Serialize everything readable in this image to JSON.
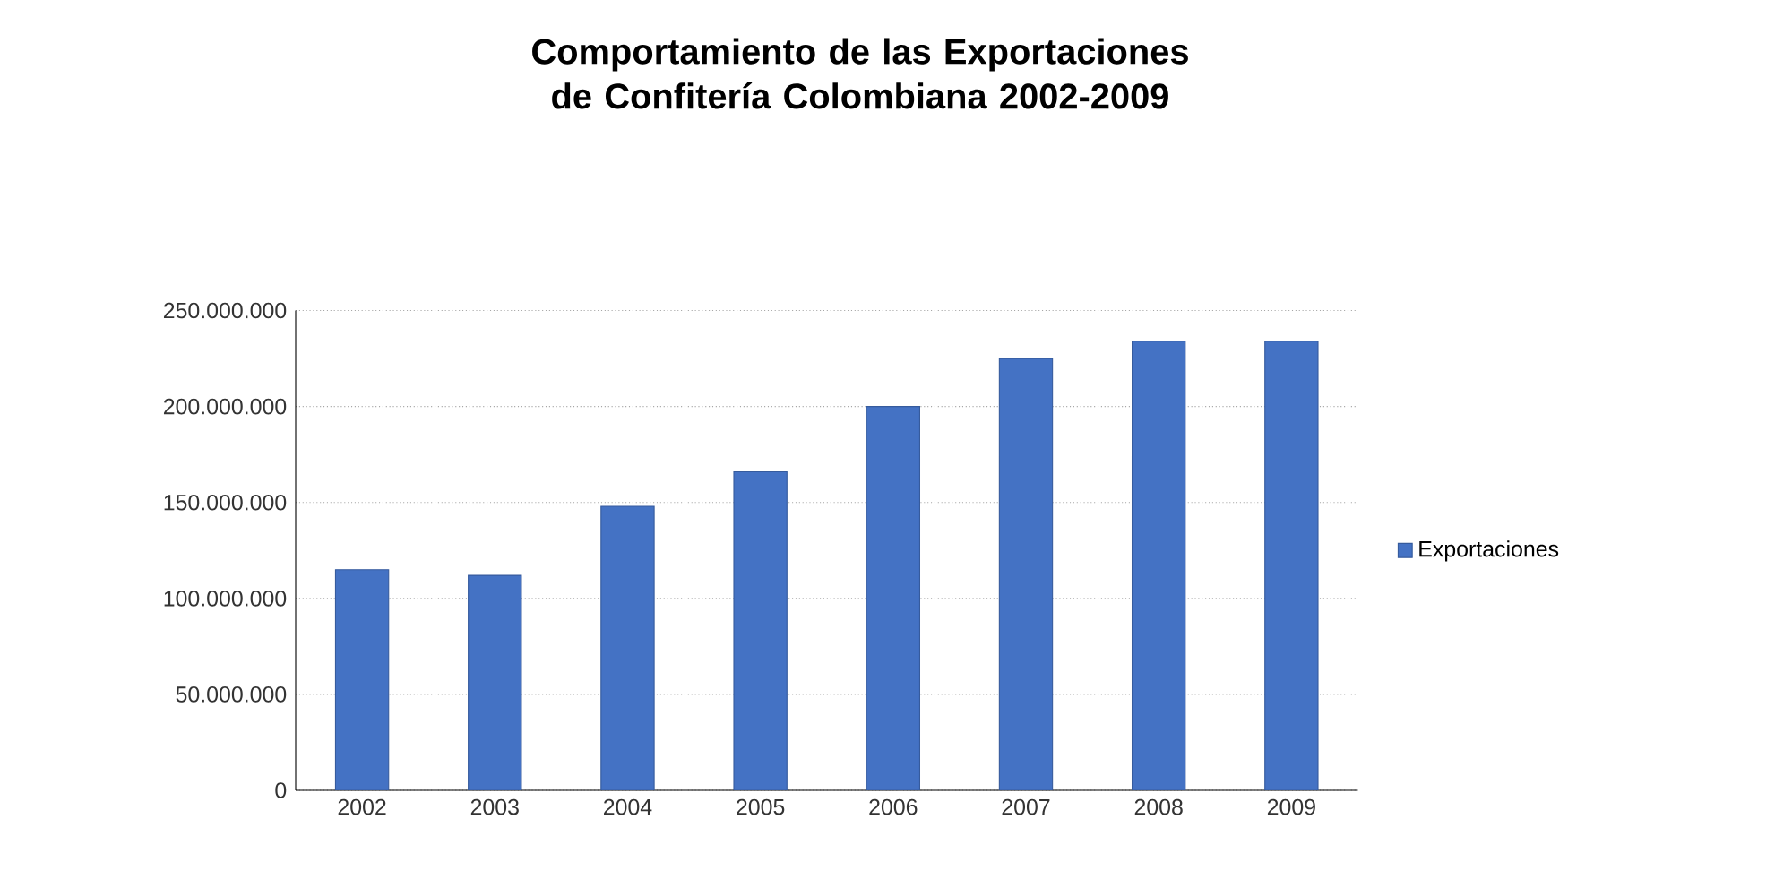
{
  "chart_data": {
    "type": "bar",
    "title": "Comportamiento de las Exportaciones de Confitería Colombiana 2002-2009",
    "categories": [
      "2002",
      "2003",
      "2004",
      "2005",
      "2006",
      "2007",
      "2008",
      "2009"
    ],
    "series": [
      {
        "name": "Exportaciones",
        "color": "#4472c4",
        "values": [
          115000000,
          112000000,
          148000000,
          166000000,
          200000000,
          225000000,
          234000000,
          234000000
        ]
      }
    ],
    "ylim": [
      0,
      250000000
    ],
    "yticks": [
      {
        "value": 0,
        "label": "0"
      },
      {
        "value": 50000000,
        "label": "50.000.000"
      },
      {
        "value": 100000000,
        "label": "100.000.000"
      },
      {
        "value": 150000000,
        "label": "150.000.000"
      },
      {
        "value": 200000000,
        "label": "200.000.000"
      },
      {
        "value": 250000000,
        "label": "250.000.000"
      }
    ],
    "grid": "y",
    "legend": "right"
  }
}
